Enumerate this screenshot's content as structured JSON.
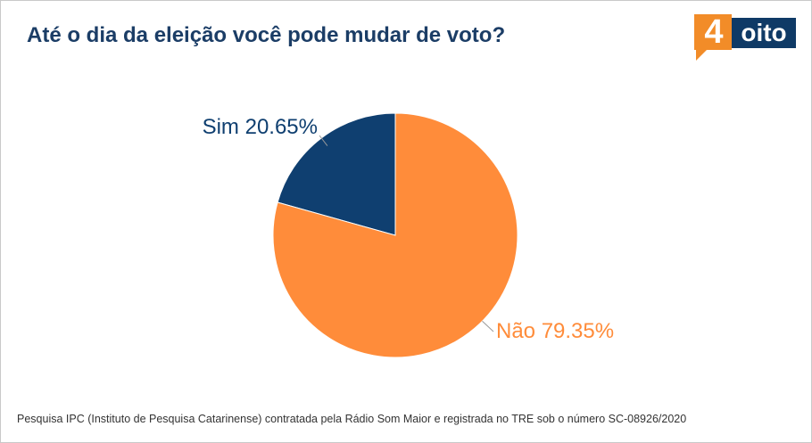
{
  "title": "Até o dia da eleição você pode mudar de voto?",
  "logo": {
    "number": "4",
    "word": "oito"
  },
  "chart_data": {
    "type": "pie",
    "title": "Até o dia da eleição você pode mudar de voto?",
    "slices": [
      {
        "label": "Sim",
        "value": 20.65,
        "display": "Sim 20.65%",
        "color": "#0f3f70"
      },
      {
        "label": "Não",
        "value": 79.35,
        "display": "Não 79.35%",
        "color": "#ff8c3a"
      }
    ]
  },
  "footer": "Pesquisa IPC (Instituto de Pesquisa Catarinense) contratada pela Rádio Som Maior e registrada no TRE sob o número SC-08926/2020",
  "colors": {
    "title": "#1b3d66",
    "logo_orange": "#f28c28",
    "logo_blue": "#0f3a66"
  }
}
